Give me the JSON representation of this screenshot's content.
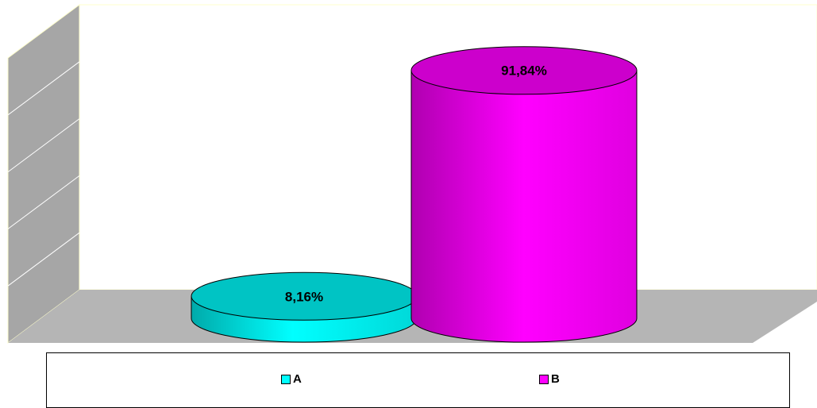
{
  "chart_data": {
    "type": "bar",
    "style": "3d-cylinder",
    "categories": [
      "A",
      "B"
    ],
    "values": [
      8.16,
      91.84
    ],
    "unit": "%",
    "data_labels": [
      "8,16%",
      "91,84%"
    ],
    "colors": {
      "A": "#00c4c4",
      "B": "#ff00ff"
    },
    "ylim": [
      0,
      100
    ],
    "grid": true,
    "legend": {
      "position": "bottom",
      "entries": [
        "A",
        "B"
      ]
    }
  }
}
